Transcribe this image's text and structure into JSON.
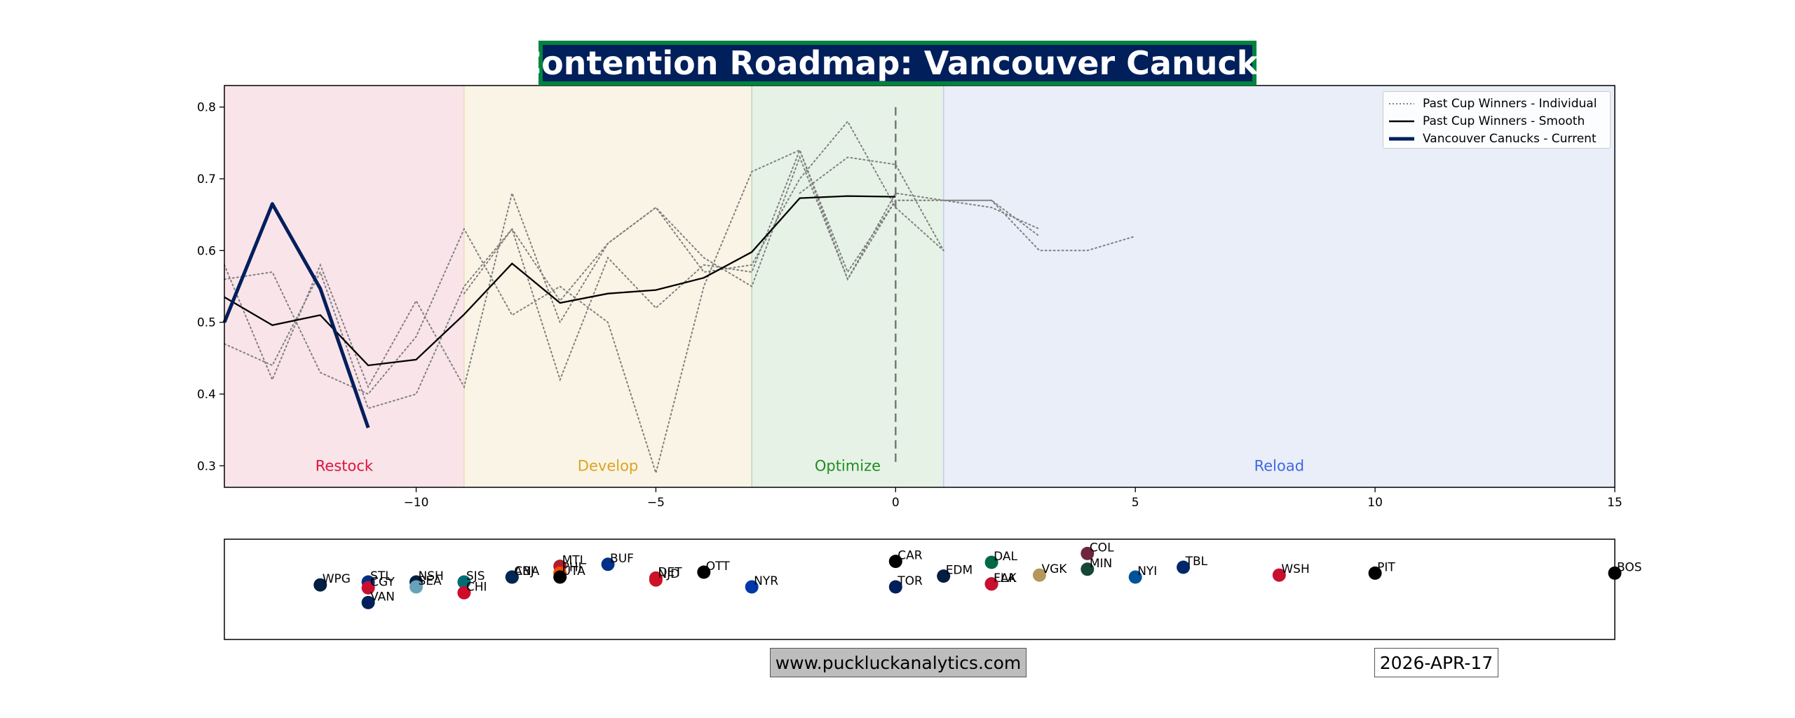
{
  "title": "Contention Roadmap: Vancouver Canucks",
  "footer": {
    "url": "www.puckluckanalytics.com",
    "date": "2026-APR-17"
  },
  "colors": {
    "title_bg": "#001F5B",
    "title_border": "#00843D",
    "current": "#001F5B"
  },
  "chart_data": {
    "type": "line",
    "xlim": [
      -14,
      15
    ],
    "ylim": [
      0.27,
      0.83
    ],
    "x_ticks": [
      -10,
      -5,
      0,
      5,
      10,
      15
    ],
    "y_ticks": [
      0.3,
      0.4,
      0.5,
      0.6,
      0.7,
      0.8
    ],
    "grid": false,
    "legend_position": "top-right",
    "phases": [
      {
        "label": "Restock",
        "x_start": -14,
        "x_end": -9,
        "fill": "#f9e4ea",
        "text_color": "#dc143c"
      },
      {
        "label": "Develop",
        "x_start": -9,
        "x_end": -3,
        "fill": "#faf4e6",
        "text_color": "#daa520"
      },
      {
        "label": "Optimize",
        "x_start": -3,
        "x_end": 1,
        "fill": "#e6f2e6",
        "text_color": "#228b22"
      },
      {
        "label": "Reload",
        "x_start": 1,
        "x_end": 15,
        "fill": "#e9eef9",
        "text_color": "#4169e1"
      }
    ],
    "reference_line_x": 0,
    "series": [
      {
        "name": "Past Cup Winners - Individual",
        "style": "dotted",
        "color": "#808080",
        "lines": [
          {
            "x": [
              -14,
              -13,
              -12,
              -11,
              -10,
              -9,
              -8,
              -7,
              -6,
              -5,
              -4,
              -3,
              -2,
              -1,
              0,
              1,
              2,
              3
            ],
            "y": [
              0.58,
              0.42,
              0.58,
              0.41,
              0.53,
              0.41,
              0.68,
              0.5,
              0.61,
              0.66,
              0.59,
              0.55,
              0.73,
              0.56,
              0.68,
              0.67,
              0.67,
              0.62
            ]
          },
          {
            "x": [
              -14,
              -13,
              -12,
              -11,
              -10,
              -9,
              -8,
              -7,
              -6,
              -5,
              -4,
              -3,
              -2,
              -1,
              0,
              1,
              2,
              3,
              4,
              5
            ],
            "y": [
              0.47,
              0.44,
              0.57,
              0.38,
              0.4,
              0.55,
              0.63,
              0.42,
              0.59,
              0.52,
              0.58,
              0.57,
              0.74,
              0.57,
              0.67,
              0.67,
              0.67,
              0.6,
              0.6,
              0.62
            ]
          },
          {
            "x": [
              -14,
              -13,
              -12,
              -11,
              -10,
              -9,
              -8,
              -7,
              -6,
              -5,
              -4,
              -3,
              -2,
              -1,
              0,
              1,
              2,
              3
            ],
            "y": [
              0.56,
              0.57,
              0.43,
              0.4,
              0.48,
              0.63,
              0.51,
              0.55,
              0.5,
              0.29,
              0.55,
              0.71,
              0.74,
              0.56,
              0.67,
              0.67,
              0.66,
              0.63
            ]
          },
          {
            "x": [
              -9,
              -8,
              -7,
              -6,
              -5,
              -4,
              -3,
              -2,
              -1,
              0,
              1
            ],
            "y": [
              0.54,
              0.63,
              0.53,
              0.61,
              0.66,
              0.57,
              0.58,
              0.7,
              0.78,
              0.66,
              0.6
            ]
          },
          {
            "x": [
              -2,
              -1,
              0,
              1
            ],
            "y": [
              0.68,
              0.73,
              0.72,
              0.6
            ]
          }
        ]
      },
      {
        "name": "Past Cup Winners - Smooth",
        "style": "solid",
        "color": "#000000",
        "x": [
          -14,
          -13,
          -12,
          -11,
          -10,
          -9,
          -8,
          -7,
          -6,
          -5,
          -4,
          -3,
          -2,
          -1,
          0
        ],
        "y": [
          0.535,
          0.496,
          0.51,
          0.44,
          0.448,
          0.511,
          0.582,
          0.527,
          0.54,
          0.545,
          0.562,
          0.598,
          0.673,
          0.676,
          0.675
        ]
      },
      {
        "name": "Vancouver Canucks - Current",
        "style": "solid-thick",
        "color": "#001F5B",
        "x": [
          -14,
          -13,
          -12,
          -11
        ],
        "y": [
          0.5,
          0.665,
          0.547,
          0.353
        ]
      }
    ],
    "teams": [
      {
        "label": "WPG",
        "x": -12,
        "y": -0.3,
        "color": "#041E42"
      },
      {
        "label": "STL",
        "x": -11,
        "y": 0.0,
        "color": "#002F87"
      },
      {
        "label": "CGY",
        "x": -11,
        "y": -0.6,
        "color": "#C8102E"
      },
      {
        "label": "VAN",
        "x": -11,
        "y": -2.1,
        "color": "#001F5B"
      },
      {
        "label": "NSH",
        "x": -10,
        "y": 0.0,
        "color": "#041E42"
      },
      {
        "label": "SEA",
        "x": -10,
        "y": -0.5,
        "color": "#68A2B9"
      },
      {
        "label": "SJS",
        "x": -9,
        "y": 0.0,
        "color": "#006D75"
      },
      {
        "label": "CHI",
        "x": -9,
        "y": -1.1,
        "color": "#CF0A2C"
      },
      {
        "label": "ANA",
        "x": -8,
        "y": 0.5,
        "color": "#111111"
      },
      {
        "label": "CBJ",
        "x": -8,
        "y": 0.5,
        "color": "#002654"
      },
      {
        "label": "MTL",
        "x": -7,
        "y": 1.6,
        "color": "#AF1E2D"
      },
      {
        "label": "PHI",
        "x": -7,
        "y": 0.9,
        "color": "#F74902"
      },
      {
        "label": "UTA",
        "x": -7,
        "y": 0.5,
        "color": "#000000"
      },
      {
        "label": "BUF",
        "x": -6,
        "y": 1.8,
        "color": "#003087"
      },
      {
        "label": "DET",
        "x": -5,
        "y": 0.4,
        "color": "#CE1126"
      },
      {
        "label": "NJD",
        "x": -5,
        "y": 0.2,
        "color": "#CE1126"
      },
      {
        "label": "OTT",
        "x": -4,
        "y": 1.0,
        "color": "#000000"
      },
      {
        "label": "NYR",
        "x": -3,
        "y": -0.5,
        "color": "#0038A8"
      },
      {
        "label": "CAR",
        "x": 0,
        "y": 2.1,
        "color": "#000000"
      },
      {
        "label": "TOR",
        "x": 0,
        "y": -0.5,
        "color": "#00205B"
      },
      {
        "label": "EDM",
        "x": 1,
        "y": 0.6,
        "color": "#041E42"
      },
      {
        "label": "DAL",
        "x": 2,
        "y": 2.0,
        "color": "#006847"
      },
      {
        "label": "LAK",
        "x": 2,
        "y": -0.2,
        "color": "#111111"
      },
      {
        "label": "FLA",
        "x": 2,
        "y": -0.2,
        "color": "#C8102E"
      },
      {
        "label": "VGK",
        "x": 3,
        "y": 0.7,
        "color": "#B4975A"
      },
      {
        "label": "COL",
        "x": 4,
        "y": 2.9,
        "color": "#6F263D"
      },
      {
        "label": "MIN",
        "x": 4,
        "y": 1.3,
        "color": "#154734"
      },
      {
        "label": "NYI",
        "x": 5,
        "y": 0.5,
        "color": "#00539B"
      },
      {
        "label": "TBL",
        "x": 6,
        "y": 1.5,
        "color": "#002868"
      },
      {
        "label": "WSH",
        "x": 8,
        "y": 0.7,
        "color": "#C8102E"
      },
      {
        "label": "PIT",
        "x": 10,
        "y": 0.9,
        "color": "#000000"
      },
      {
        "label": "BOS",
        "x": 15,
        "y": 0.9,
        "color": "#000000"
      }
    ]
  }
}
